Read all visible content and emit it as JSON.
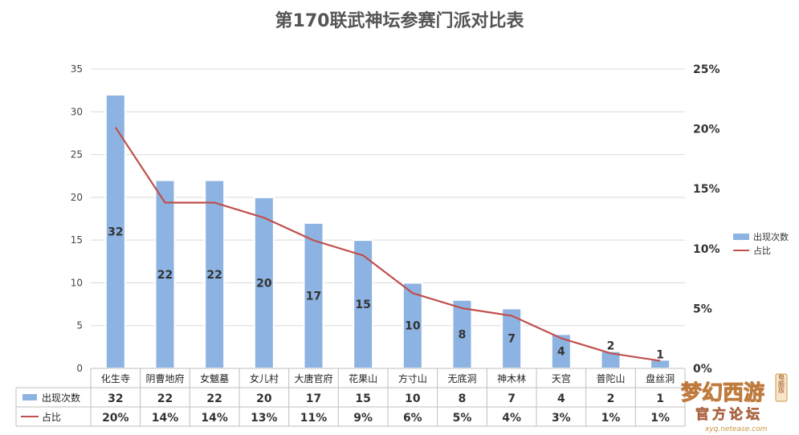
{
  "chart_data": {
    "type": "bar",
    "title": "第170联武神坛参赛门派对比表",
    "categories": [
      "化生寺",
      "阴曹地府",
      "女魃墓",
      "女儿村",
      "大唐官府",
      "花果山",
      "方寸山",
      "无底洞",
      "神木林",
      "天宫",
      "普陀山",
      "盘丝洞"
    ],
    "series": [
      {
        "name": "出现次数",
        "type": "bar",
        "axis": "left",
        "values": [
          32,
          22,
          22,
          20,
          17,
          15,
          10,
          8,
          7,
          4,
          2,
          1
        ]
      },
      {
        "name": "占比",
        "type": "line",
        "axis": "right",
        "values": [
          20,
          14,
          14,
          13,
          11,
          9,
          6,
          5,
          4,
          3,
          1,
          1
        ]
      }
    ],
    "table_labels": {
      "bar": [
        "32",
        "22",
        "22",
        "20",
        "17",
        "15",
        "10",
        "8",
        "7",
        "4",
        "2",
        "1"
      ],
      "line": [
        "20%",
        "14%",
        "14%",
        "13%",
        "11%",
        "9%",
        "6%",
        "5%",
        "4%",
        "3%",
        "1%",
        "1%"
      ]
    },
    "line_actual": [
      20.13,
      13.84,
      13.84,
      12.58,
      10.69,
      9.43,
      6.29,
      5.03,
      4.4,
      2.52,
      1.26,
      0.63
    ],
    "ylim_left": [
      0,
      35
    ],
    "left_ticks": [
      "0",
      "5",
      "10",
      "15",
      "20",
      "25",
      "30",
      "35"
    ],
    "ylim_right": [
      0,
      25
    ],
    "right_ticks": [
      "0%",
      "5%",
      "10%",
      "15%",
      "20%",
      "25%"
    ],
    "grid": true,
    "legend_position": "right",
    "bar_color": "#8db3e2",
    "line_color": "#c0504d"
  },
  "watermark": {
    "brand": "梦幻西游",
    "tag": "电脑版",
    "sub": "官方论坛",
    "url": "xyq.netease.com"
  }
}
